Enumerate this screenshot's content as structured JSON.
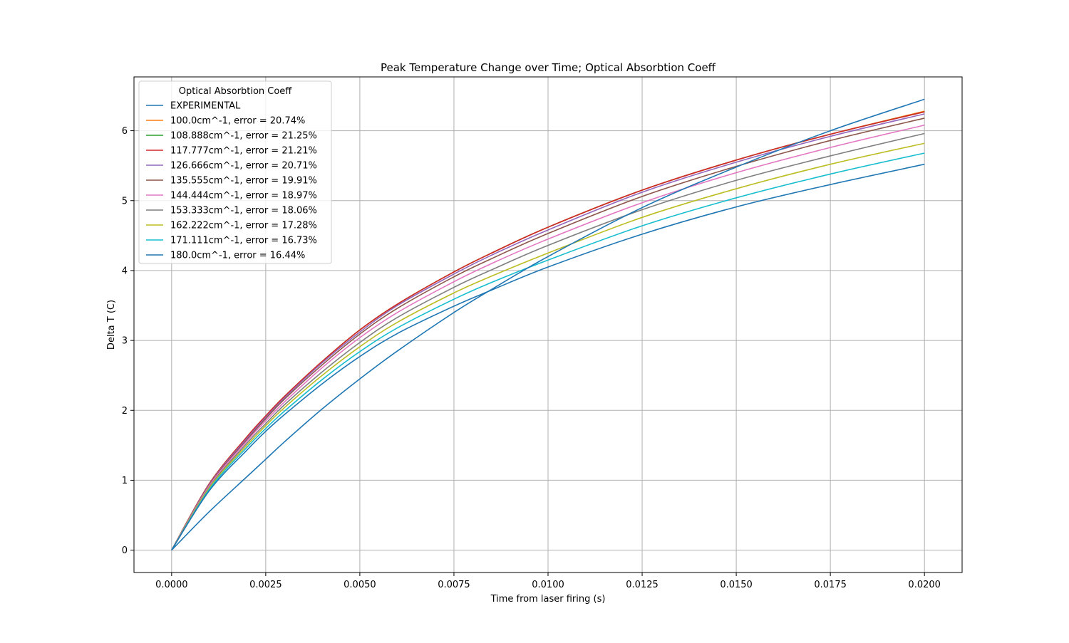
{
  "chart_data": {
    "type": "line",
    "title": "Peak Temperature Change over Time; Optical Absorbtion Coeff",
    "xlabel": "Time from laser firing (s)",
    "ylabel": "Delta T (C)",
    "xlim": [
      -0.001,
      0.021
    ],
    "ylim": [
      -0.32,
      6.77
    ],
    "xticks": [
      0.0,
      0.0025,
      0.005,
      0.0075,
      0.01,
      0.0125,
      0.015,
      0.0175,
      0.02
    ],
    "xtick_labels": [
      "0.0000",
      "0.0025",
      "0.0050",
      "0.0075",
      "0.0100",
      "0.0125",
      "0.0150",
      "0.0175",
      "0.0200"
    ],
    "yticks": [
      0,
      1,
      2,
      3,
      4,
      5,
      6
    ],
    "ytick_labels": [
      "0",
      "1",
      "2",
      "3",
      "4",
      "5",
      "6"
    ],
    "grid": true,
    "legend_title": "Optical Absorbtion Coeff",
    "legend_position": "upper-left",
    "x": [
      0.0,
      0.001,
      0.002,
      0.0025,
      0.003,
      0.004,
      0.005,
      0.006,
      0.0075,
      0.0085,
      0.01,
      0.0125,
      0.015,
      0.0175,
      0.02
    ],
    "series": [
      {
        "name": "EXPERIMENTAL",
        "color": "#1f77b4",
        "values": [
          0,
          0.55,
          1.05,
          1.3,
          1.55,
          2.02,
          2.45,
          2.85,
          3.4,
          3.73,
          4.2,
          4.9,
          5.48,
          6.0,
          6.45
        ]
      },
      {
        "name": "100.0cm^-1, error = 20.74%",
        "color": "#ff7f0e",
        "values": [
          0,
          0.95,
          1.62,
          1.92,
          2.2,
          2.7,
          3.15,
          3.52,
          3.98,
          4.25,
          4.62,
          5.15,
          5.58,
          5.95,
          6.28
        ]
      },
      {
        "name": "108.888cm^-1, error = 21.25%",
        "color": "#2ca02c",
        "values": [
          0,
          0.95,
          1.62,
          1.92,
          2.2,
          2.7,
          3.15,
          3.52,
          3.98,
          4.25,
          4.62,
          5.15,
          5.58,
          5.95,
          6.27
        ]
      },
      {
        "name": "117.777cm^-1, error = 21.21%",
        "color": "#d62728",
        "values": [
          0,
          0.95,
          1.62,
          1.92,
          2.2,
          2.7,
          3.15,
          3.52,
          3.98,
          4.25,
          4.62,
          5.15,
          5.58,
          5.95,
          6.27
        ]
      },
      {
        "name": "126.666cm^-1, error = 20.71%",
        "color": "#9467bd",
        "values": [
          0,
          0.94,
          1.6,
          1.9,
          2.18,
          2.68,
          3.12,
          3.5,
          3.95,
          4.22,
          4.58,
          5.12,
          5.55,
          5.92,
          6.24
        ]
      },
      {
        "name": "135.555cm^-1, error = 19.91%",
        "color": "#8c564b",
        "values": [
          0,
          0.93,
          1.58,
          1.88,
          2.16,
          2.65,
          3.09,
          3.46,
          3.91,
          4.17,
          4.53,
          5.06,
          5.49,
          5.86,
          6.18
        ]
      },
      {
        "name": "144.444cm^-1, error = 18.97%",
        "color": "#e377c2",
        "values": [
          0,
          0.92,
          1.56,
          1.85,
          2.12,
          2.61,
          3.04,
          3.4,
          3.84,
          4.1,
          4.45,
          4.97,
          5.4,
          5.76,
          6.08
        ]
      },
      {
        "name": "153.333cm^-1, error = 18.06%",
        "color": "#7f7f7f",
        "values": [
          0,
          0.9,
          1.53,
          1.81,
          2.08,
          2.55,
          2.97,
          3.33,
          3.76,
          4.01,
          4.36,
          4.87,
          5.29,
          5.64,
          5.96
        ]
      },
      {
        "name": "162.222cm^-1, error = 17.28%",
        "color": "#bcbd22",
        "values": [
          0,
          0.89,
          1.5,
          1.78,
          2.04,
          2.5,
          2.91,
          3.26,
          3.68,
          3.92,
          4.25,
          4.76,
          5.17,
          5.52,
          5.82
        ]
      },
      {
        "name": "171.111cm^-1, error = 16.73%",
        "color": "#17becf",
        "values": [
          0,
          0.87,
          1.47,
          1.74,
          1.99,
          2.44,
          2.84,
          3.18,
          3.59,
          3.83,
          4.15,
          4.64,
          5.04,
          5.38,
          5.68
        ]
      },
      {
        "name": "180.0cm^-1, error = 16.44%",
        "color": "#1f77b4",
        "values": [
          0,
          0.85,
          1.43,
          1.7,
          1.94,
          2.38,
          2.77,
          3.1,
          3.49,
          3.72,
          4.05,
          4.52,
          4.91,
          5.23,
          5.52
        ]
      }
    ]
  }
}
